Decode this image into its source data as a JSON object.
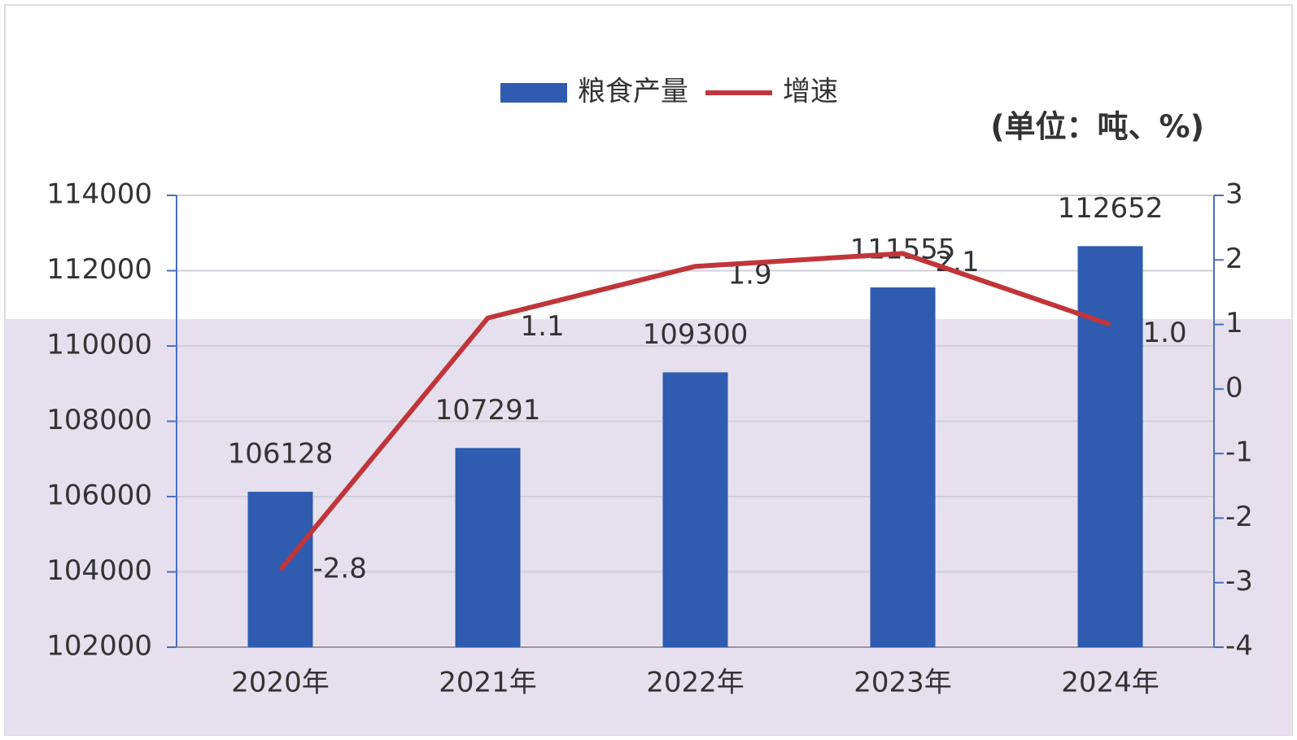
{
  "chart_data": {
    "type": "bar-line",
    "legend_position": "top",
    "unit_note": "(单位：吨、%)",
    "categories": [
      "2020年",
      "2021年",
      "2022年",
      "2023年",
      "2024年"
    ],
    "series": [
      {
        "name": "粮食产量",
        "type": "bar",
        "color": "#2f5bb0",
        "values": [
          106128,
          107291,
          109300,
          111555,
          112652
        ]
      },
      {
        "name": "增速",
        "type": "line",
        "axis": "y2",
        "color": "#c0353a",
        "values": [
          -2.8,
          1.1,
          1.9,
          2.1,
          1.0
        ],
        "value_labels": [
          "-2.8",
          "1.1",
          "1.9",
          "2.1",
          "1.0"
        ]
      }
    ],
    "ylim": [
      102000,
      114000
    ],
    "yticks": [
      102000,
      104000,
      106000,
      108000,
      110000,
      112000,
      114000
    ],
    "y2lim": [
      -4,
      3
    ],
    "y2ticks": [
      -4,
      -3,
      -2,
      -1,
      0,
      1,
      2,
      3
    ],
    "grid": true
  }
}
